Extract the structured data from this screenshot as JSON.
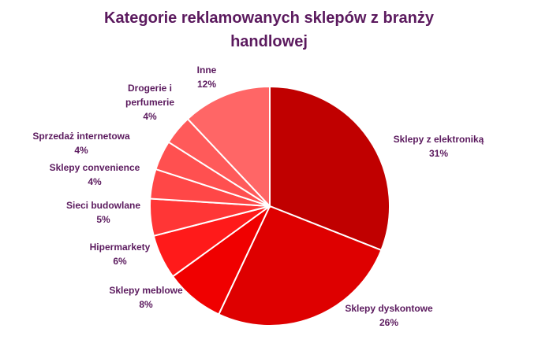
{
  "chart_data": {
    "type": "pie",
    "title_lines": [
      "Kategorie reklamowanych sklepów z branży",
      "handlowej"
    ],
    "slices": [
      {
        "label": "Sklepy z elektroniką",
        "value": 31,
        "value_label": "31%",
        "color": "#C00000"
      },
      {
        "label": "Sklepy dyskontowe",
        "value": 26,
        "value_label": "26%",
        "color": "#DE0000"
      },
      {
        "label": "Sklepy meblowe",
        "value": 8,
        "value_label": "8%",
        "color": "#F00000"
      },
      {
        "label": "Hipermarkety",
        "value": 6,
        "value_label": "6%",
        "color": "#FF1A1A"
      },
      {
        "label": "Sieci budowlane",
        "value": 5,
        "value_label": "5%",
        "color": "#FF3636"
      },
      {
        "label": "Sklepy convenience",
        "value": 4,
        "value_label": "4%",
        "color": "#FF4747"
      },
      {
        "label": "Sprzedaż internetowa",
        "value": 4,
        "value_label": "4%",
        "color": "#FF5050"
      },
      {
        "label": "Drogerie i perfumerie",
        "label_lines": [
          "Drogerie i",
          "perfumerie"
        ],
        "value": 4,
        "value_label": "4%",
        "color": "#FF5A5A"
      },
      {
        "label": "Inne",
        "value": 12,
        "value_label": "12%",
        "color": "#FF6666"
      }
    ],
    "start": "12 o'clock, clockwise",
    "legend": "none (labels outside slices)"
  }
}
